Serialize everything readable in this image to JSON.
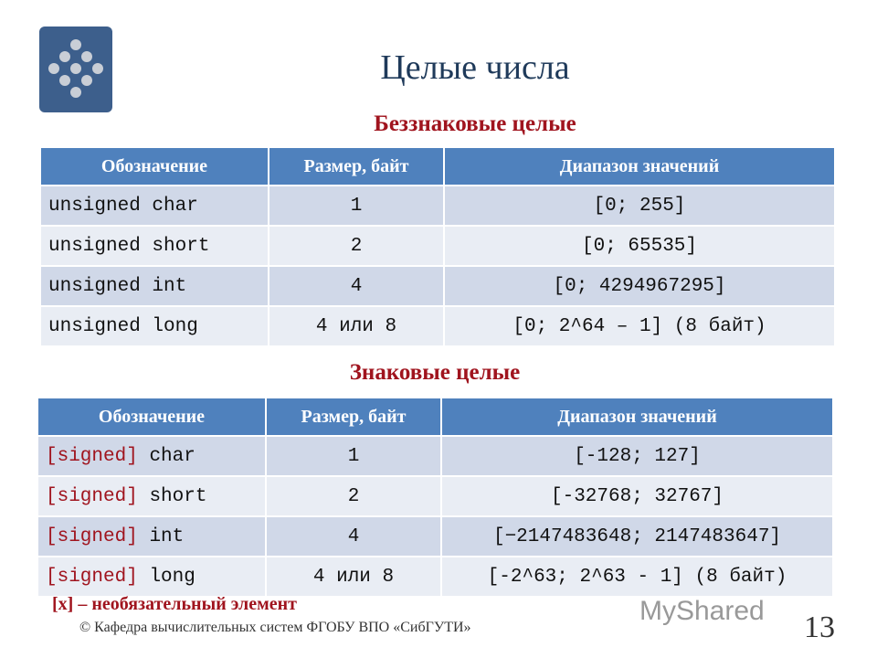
{
  "title": "Целые числа",
  "unsigned": {
    "heading": "Беззнаковые целые",
    "headers": [
      "Обозначение",
      "Размер, байт",
      "Диапазон значений"
    ],
    "rows": [
      [
        "unsigned char",
        "1",
        "[0; 255]"
      ],
      [
        "unsigned short",
        "2",
        "[0; 65535]"
      ],
      [
        "unsigned int",
        "4",
        "[0; 4294967295]"
      ],
      [
        "unsigned long",
        "4 или 8",
        "[0; 2^64 – 1] (8 байт)"
      ]
    ]
  },
  "signed": {
    "heading": "Знаковые целые",
    "headers": [
      "Обозначение",
      "Размер, байт",
      "Диапазон значений"
    ],
    "prefix": "[signed]",
    "rows": [
      [
        "char",
        "1",
        "[-128; 127]"
      ],
      [
        "short",
        "2",
        "[-32768; 32767]"
      ],
      [
        "int",
        "4",
        "[−2147483648; 2147483647]"
      ],
      [
        "long",
        "4 или 8",
        "[-2^63; 2^63 - 1] (8 байт)"
      ]
    ]
  },
  "note": "[x] – необязательный элемент",
  "copyright": "© Кафедра вычислительных систем ФГОБУ ВПО «СибГУТИ»",
  "watermark": "MyShared",
  "page_number": "13",
  "colors": {
    "header": "#4f81bd",
    "row_dark": "#d0d8e8",
    "row_light": "#e9edf4",
    "accent": "#a0141e"
  }
}
